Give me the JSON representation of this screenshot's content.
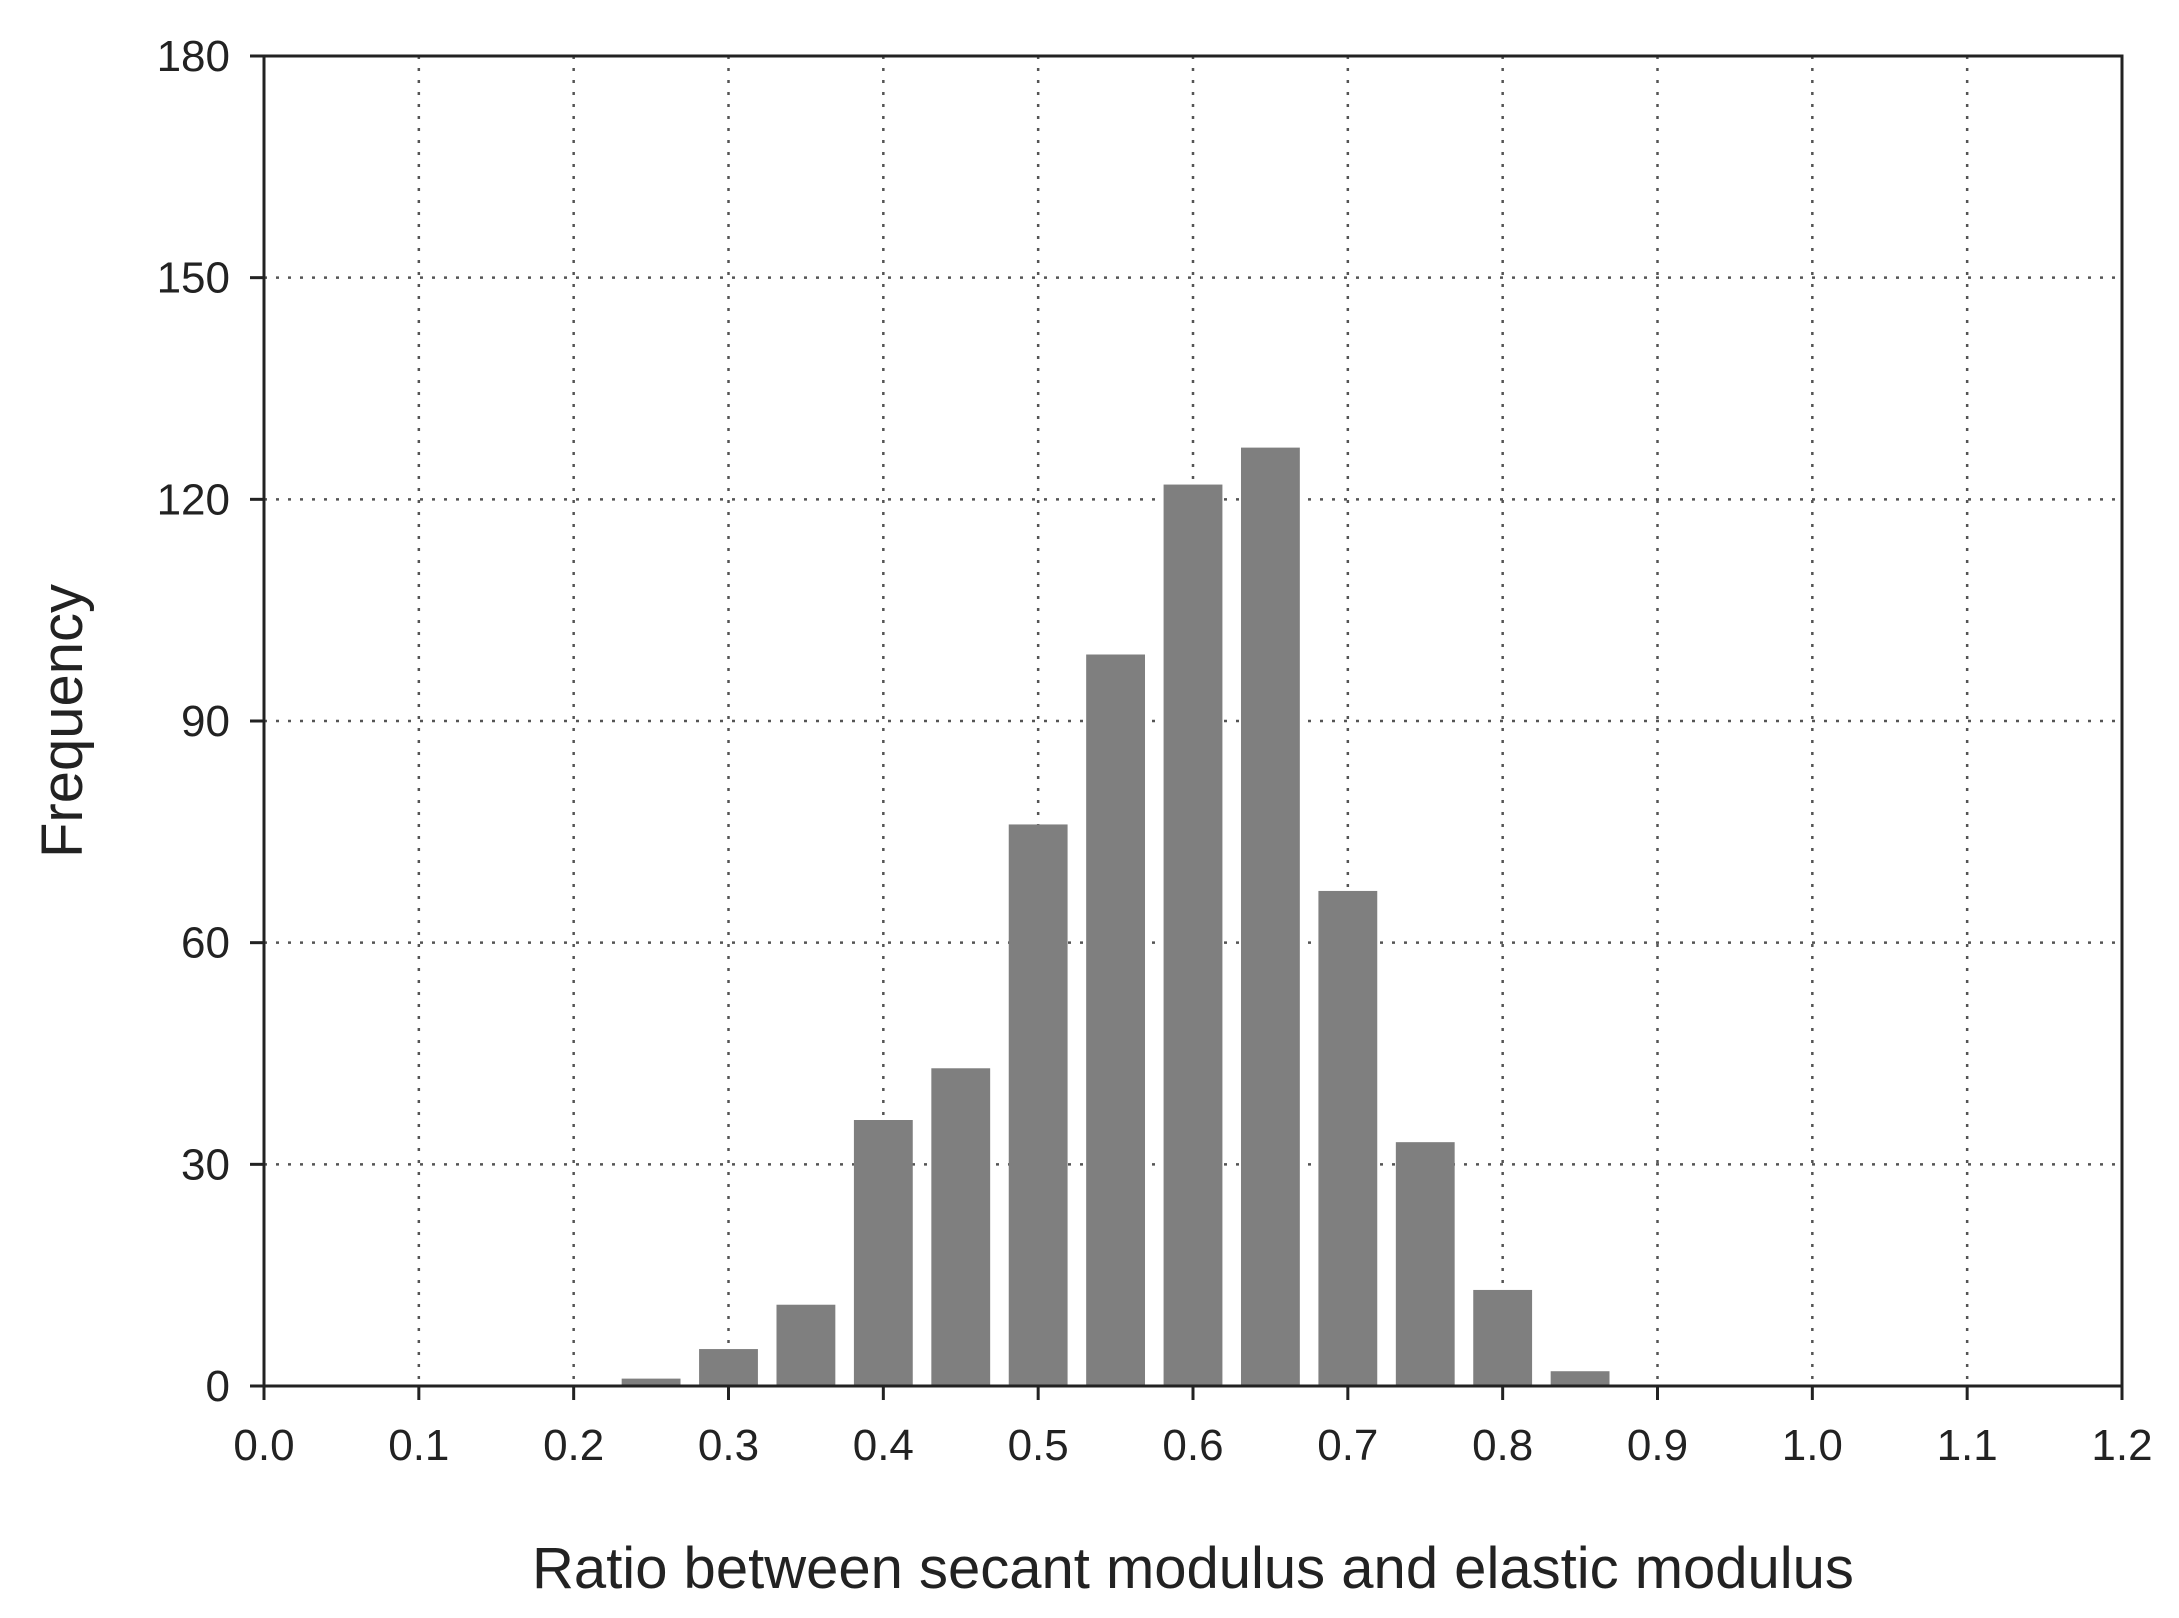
{
  "chart_data": {
    "type": "bar",
    "title": "",
    "xlabel": "Ratio between secant modulus and elastic modulus",
    "ylabel": "Frequency",
    "xlim": [
      0.0,
      1.2
    ],
    "ylim": [
      0,
      180
    ],
    "xticks": [
      "0.0",
      "0.1",
      "0.2",
      "0.3",
      "0.4",
      "0.5",
      "0.6",
      "0.7",
      "0.8",
      "0.9",
      "1.0",
      "1.1",
      "1.2"
    ],
    "yticks": [
      "0",
      "30",
      "60",
      "90",
      "120",
      "150",
      "180"
    ],
    "grid": true,
    "bar_color": "#7f7f7f",
    "x": [
      0.25,
      0.3,
      0.35,
      0.4,
      0.45,
      0.5,
      0.55,
      0.6,
      0.65,
      0.7,
      0.75,
      0.8,
      0.85
    ],
    "values": [
      1,
      5,
      11,
      36,
      43,
      76,
      99,
      122,
      127,
      67,
      33,
      13,
      2
    ]
  }
}
